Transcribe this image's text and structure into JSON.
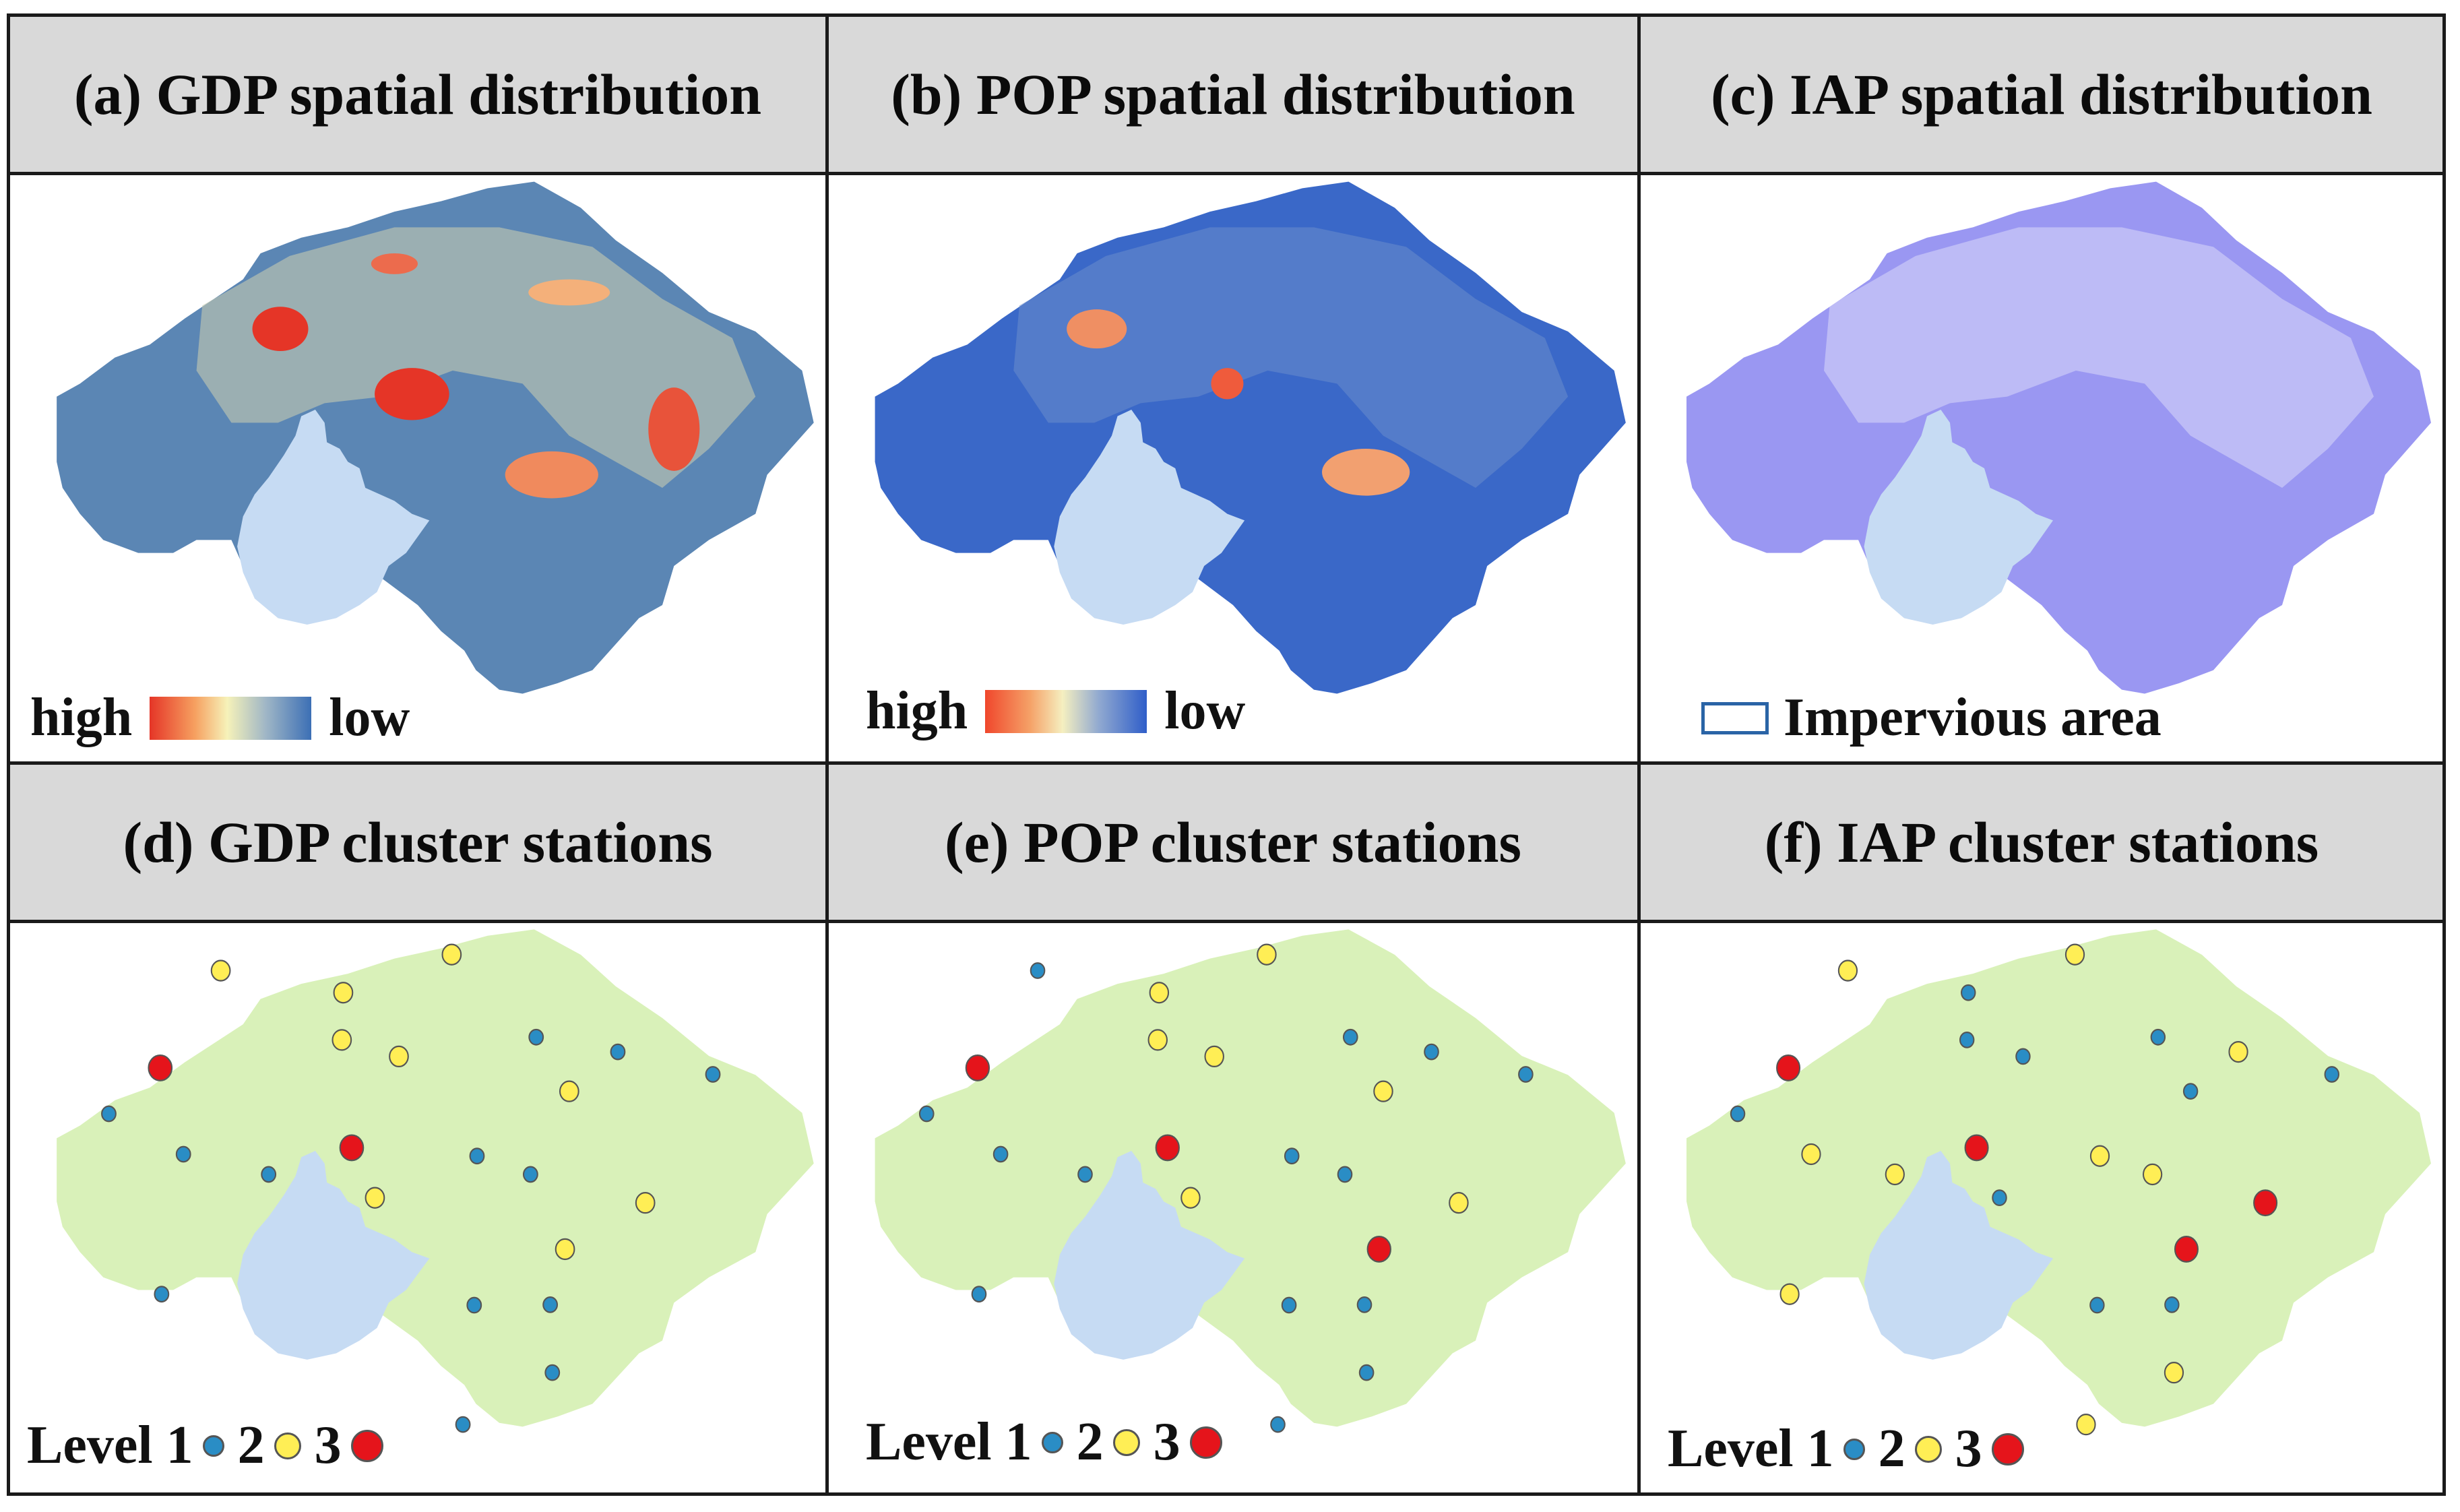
{
  "panels": {
    "a": {
      "title": "(a) GDP spatial distribution",
      "legend_high": "high",
      "legend_low": "low"
    },
    "b": {
      "title": "(b) POP spatial distribution",
      "legend_high": "high",
      "legend_low": "low"
    },
    "c": {
      "title": "(c) IAP spatial distribution",
      "legend_label": "Impervious area"
    },
    "d": {
      "title": "(d) GDP cluster stations"
    },
    "e": {
      "title": "(e) POP cluster stations"
    },
    "f": {
      "title": "(f) IAP cluster stations"
    }
  },
  "cluster_legend": {
    "level1": "Level 1",
    "level2": "2",
    "level3": "3"
  },
  "colors": {
    "land": "#d9f1b9",
    "lake": "#c6dbf3",
    "gdp_base": "#5b86b4",
    "pop_base": "#3a68c8",
    "iap_base": "#9a97f2",
    "level1": "#2a8dc5",
    "level2": "#ffee55",
    "level3": "#e5141b",
    "header_bg": "#d9d9d9"
  },
  "stations": {
    "d": [
      [
        "2",
        0.233,
        0.076
      ],
      [
        "2",
        0.561,
        0.041
      ],
      [
        "2",
        0.407,
        0.124
      ],
      [
        "1",
        0.681,
        0.221
      ],
      [
        "1",
        0.797,
        0.253
      ],
      [
        "1",
        0.932,
        0.302
      ],
      [
        "2",
        0.405,
        0.227
      ],
      [
        "3",
        0.147,
        0.288
      ],
      [
        "2",
        0.486,
        0.263
      ],
      [
        "2",
        0.728,
        0.339
      ],
      [
        "1",
        0.074,
        0.388
      ],
      [
        "1",
        0.597,
        0.48
      ],
      [
        "1",
        0.301,
        0.52
      ],
      [
        "1",
        0.18,
        0.476
      ],
      [
        "3",
        0.419,
        0.462
      ],
      [
        "1",
        0.673,
        0.52
      ],
      [
        "2",
        0.452,
        0.571
      ],
      [
        "2",
        0.836,
        0.582
      ],
      [
        "2",
        0.722,
        0.683
      ],
      [
        "1",
        0.149,
        0.781
      ],
      [
        "1",
        0.593,
        0.805
      ],
      [
        "1",
        0.701,
        0.804
      ],
      [
        "1",
        0.704,
        0.952
      ],
      [
        "1",
        0.577,
        1.065
      ]
    ],
    "e": [
      [
        "1",
        0.233,
        0.076
      ],
      [
        "2",
        0.561,
        0.041
      ],
      [
        "2",
        0.407,
        0.124
      ],
      [
        "1",
        0.681,
        0.221
      ],
      [
        "1",
        0.797,
        0.253
      ],
      [
        "1",
        0.932,
        0.302
      ],
      [
        "2",
        0.405,
        0.227
      ],
      [
        "3",
        0.147,
        0.288
      ],
      [
        "2",
        0.486,
        0.263
      ],
      [
        "2",
        0.728,
        0.339
      ],
      [
        "1",
        0.074,
        0.388
      ],
      [
        "1",
        0.597,
        0.48
      ],
      [
        "1",
        0.301,
        0.52
      ],
      [
        "1",
        0.18,
        0.476
      ],
      [
        "3",
        0.419,
        0.462
      ],
      [
        "1",
        0.673,
        0.52
      ],
      [
        "2",
        0.452,
        0.571
      ],
      [
        "2",
        0.836,
        0.582
      ],
      [
        "3",
        0.722,
        0.683
      ],
      [
        "1",
        0.149,
        0.781
      ],
      [
        "1",
        0.593,
        0.805
      ],
      [
        "1",
        0.701,
        0.804
      ],
      [
        "1",
        0.704,
        0.952
      ],
      [
        "1",
        0.577,
        1.065
      ]
    ],
    "f": [
      [
        "2",
        0.233,
        0.076
      ],
      [
        "2",
        0.561,
        0.041
      ],
      [
        "1",
        0.407,
        0.124
      ],
      [
        "1",
        0.681,
        0.221
      ],
      [
        "2",
        0.797,
        0.253
      ],
      [
        "1",
        0.932,
        0.302
      ],
      [
        "1",
        0.405,
        0.227
      ],
      [
        "3",
        0.147,
        0.288
      ],
      [
        "1",
        0.486,
        0.263
      ],
      [
        "1",
        0.728,
        0.339
      ],
      [
        "1",
        0.074,
        0.388
      ],
      [
        "2",
        0.597,
        0.48
      ],
      [
        "2",
        0.301,
        0.52
      ],
      [
        "2",
        0.18,
        0.476
      ],
      [
        "3",
        0.419,
        0.462
      ],
      [
        "2",
        0.673,
        0.52
      ],
      [
        "1",
        0.452,
        0.571
      ],
      [
        "3",
        0.836,
        0.582
      ],
      [
        "3",
        0.722,
        0.683
      ],
      [
        "2",
        0.149,
        0.781
      ],
      [
        "1",
        0.593,
        0.805
      ],
      [
        "1",
        0.701,
        0.804
      ],
      [
        "2",
        0.704,
        0.952
      ],
      [
        "2",
        0.577,
        1.065
      ]
    ]
  }
}
